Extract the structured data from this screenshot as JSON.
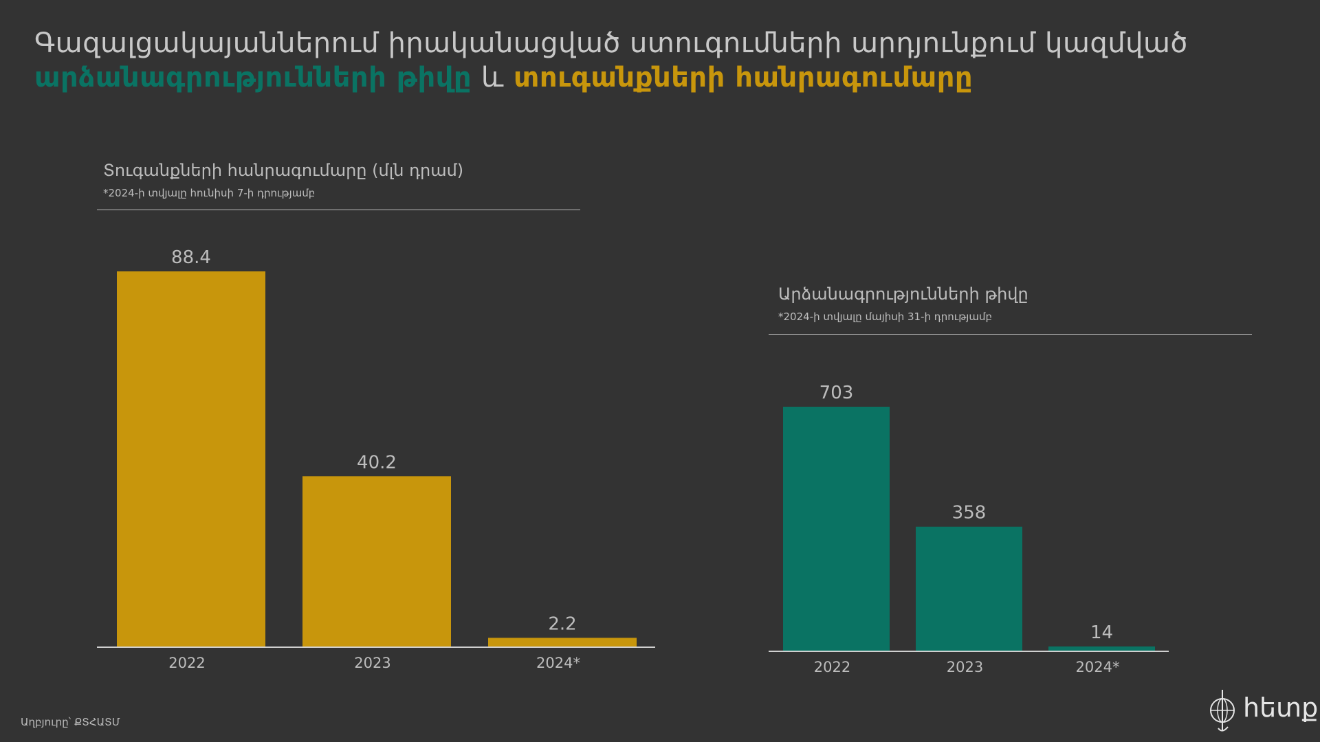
{
  "title": {
    "line1": "Գազալցակայաններում իրականացված ստուգումների արդյունքում կազմված",
    "highlight1": "արձանագրությունների թիվը",
    "connector": "և",
    "highlight2": "տուգանքների հանրագումարը"
  },
  "colors": {
    "gold": "#c8960c",
    "green": "#0a7363",
    "background": "#333333",
    "text": "#bdbdbd"
  },
  "chart_data": [
    {
      "type": "bar",
      "title": "Տուգանքների հանրագումարը (մլն դրամ)",
      "note": "*2024-ի տվյալը հունիսի 7-ի դրությամբ",
      "categories": [
        "2022",
        "2023",
        "2024*"
      ],
      "values": [
        88.4,
        40.2,
        2.2
      ],
      "value_labels": [
        "88.4",
        "40.2",
        "2.2"
      ],
      "color": "#c8960c",
      "ylim": [
        0,
        88.4
      ]
    },
    {
      "type": "bar",
      "title": "Արձանագրությունների թիվը",
      "note": "*2024-ի տվյալը մայիսի 31-ի դրությամբ",
      "categories": [
        "2022",
        "2023",
        "2024*"
      ],
      "values": [
        703,
        358,
        14
      ],
      "value_labels": [
        "703",
        "358",
        "14"
      ],
      "color": "#0a7363",
      "ylim": [
        0,
        703
      ]
    }
  ],
  "source": "Աղբյուրը՝ ՔՏՀԱՏՄ",
  "logo": {
    "text": "hետք",
    "icon": "compass-globe-icon"
  }
}
